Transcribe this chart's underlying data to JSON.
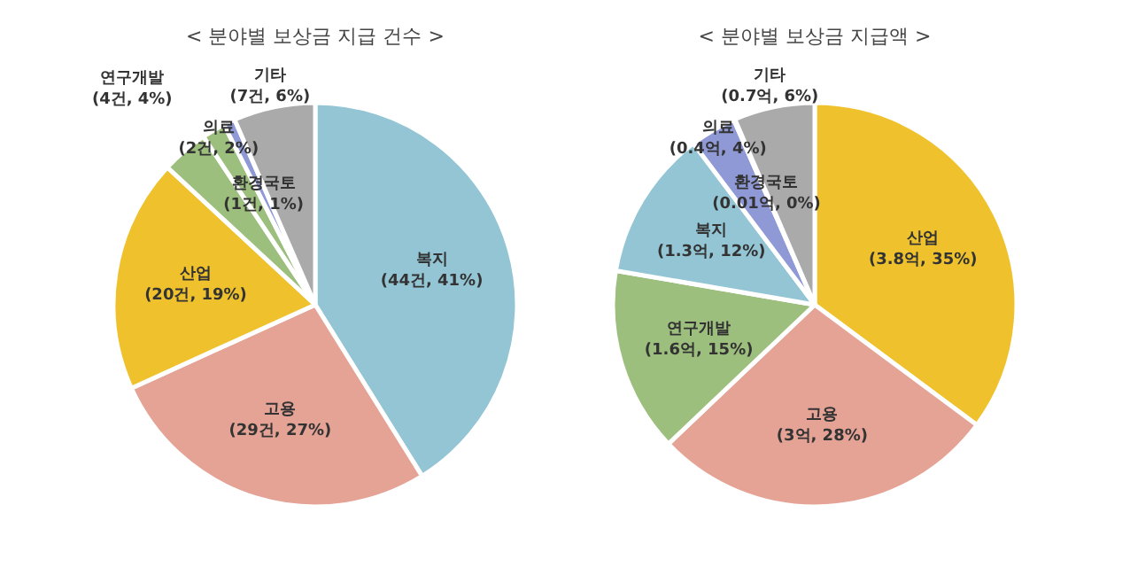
{
  "chart_data": [
    {
      "type": "pie",
      "title": "< 분야별 보상금 지급 건수 >",
      "categories": [
        "복지",
        "고용",
        "산업",
        "연구개발",
        "의료",
        "환경국토",
        "기타"
      ],
      "values": [
        44,
        29,
        20,
        4,
        2,
        1,
        7
      ],
      "value_labels": [
        "(44건, 41%)",
        "(29건, 27%)",
        "(20건, 19%)",
        "(4건, 4%)",
        "(2건, 2%)",
        "(1건, 1%)",
        "(7건, 6%)"
      ],
      "colors": [
        "#93c5d4",
        "#e5a396",
        "#efc22d",
        "#9dbf7e",
        "#9dbf7e",
        "#8f99d6",
        "#aaaaaa"
      ]
    },
    {
      "type": "pie",
      "title": "< 분야별 보상금 지급액 >",
      "categories": [
        "산업",
        "고용",
        "연구개발",
        "복지",
        "의료",
        "환경국토",
        "기타"
      ],
      "values": [
        3.8,
        3,
        1.6,
        1.3,
        0.4,
        0.01,
        0.7
      ],
      "value_labels": [
        "(3.8억, 35%)",
        "(3억, 28%)",
        "(1.6억, 15%)",
        "(1.3억, 12%)",
        "(0.4억, 4%)",
        "(0.01억, 0%)",
        "(0.7억, 6%)"
      ],
      "colors": [
        "#efc22d",
        "#e5a396",
        "#9dbf7e",
        "#93c5d4",
        "#8f99d6",
        "#8f99d6",
        "#aaaaaa"
      ]
    }
  ]
}
